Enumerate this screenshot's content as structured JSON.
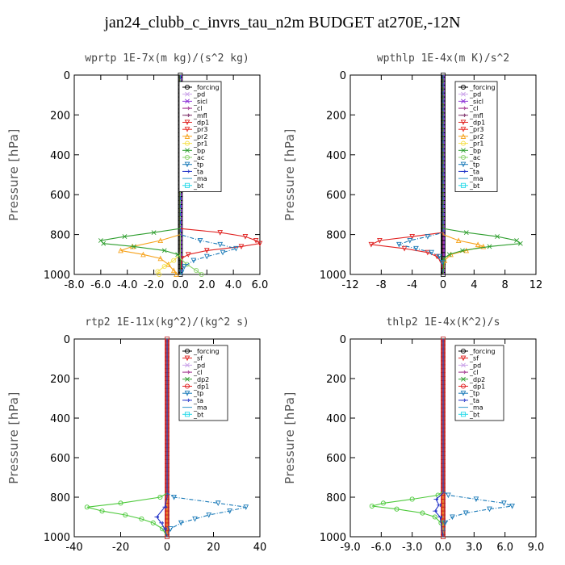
{
  "figure_title": "jan24_clubb_c_invrs_tau_n2m  BUDGET at270E,-12N",
  "chart_data": [
    {
      "type": "line",
      "title": "wprtp  1E-7x(m kg)/(s^2 kg)",
      "ylabel": "Pressure [hPa]",
      "xlim": [
        -8,
        6
      ],
      "ylim": [
        1000,
        0
      ],
      "xticks": [
        "-8.0",
        "-6.0",
        "-4.0",
        "-2.0",
        "0.0",
        "2.0",
        "4.0",
        "6.0"
      ],
      "xtick_values": [
        -8,
        -6,
        -4,
        -2,
        0,
        2,
        4,
        6
      ],
      "yticks": [
        "0",
        "200",
        "400",
        "600",
        "800",
        "1000"
      ],
      "ytick_values": [
        0,
        200,
        400,
        600,
        800,
        1000
      ],
      "legend": [
        "_forcing",
        "_pd",
        "_sicl",
        "_cl",
        "_mfl",
        "_dp1",
        "_pr3",
        "_pr2",
        "_pr1",
        "_bp",
        "_ac",
        "_tp",
        "_ta",
        "_ma",
        "_bt"
      ],
      "series": [
        {
          "name": "_dp1",
          "color": "#e0201f",
          "marker": "triangle-down",
          "p": [
            0,
            770,
            790,
            810,
            830,
            845,
            860,
            880,
            900,
            920,
            1000
          ],
          "v": [
            0,
            0,
            3.0,
            4.9,
            5.7,
            6.0,
            4.6,
            2.0,
            0.6,
            0.1,
            0
          ]
        },
        {
          "name": "_pr2",
          "color": "#f6a21b",
          "marker": "triangle",
          "p": [
            0,
            800,
            830,
            860,
            880,
            900,
            920,
            950,
            980,
            1000
          ],
          "v": [
            0,
            0,
            -1.5,
            -3.6,
            -4.5,
            -2.8,
            -1.5,
            -0.9,
            -0.5,
            -0.3
          ]
        },
        {
          "name": "_pr1",
          "color": "#f5e04a",
          "marker": "circle",
          "p": [
            0,
            900,
            930,
            960,
            985,
            1000
          ],
          "v": [
            0,
            0,
            -0.5,
            -1.2,
            -1.7,
            -1.6
          ]
        },
        {
          "name": "_bp",
          "color": "#2e9e2e",
          "marker": "x",
          "p": [
            0,
            770,
            790,
            810,
            830,
            845,
            860,
            880,
            900,
            920,
            1000
          ],
          "v": [
            0,
            0,
            -2.0,
            -4.2,
            -6.0,
            -5.8,
            -3.5,
            -1.2,
            -0.2,
            0,
            0
          ]
        },
        {
          "name": "_ac",
          "color": "#8ad26b",
          "marker": "circle",
          "p": [
            0,
            920,
            950,
            980,
            1000
          ],
          "v": [
            0,
            0,
            0.5,
            1.2,
            1.6
          ]
        },
        {
          "name": "_tp",
          "color": "#1a7ab8",
          "marker": "triangle-down",
          "p": [
            0,
            800,
            830,
            850,
            870,
            890,
            910,
            930,
            960,
            990,
            1000
          ],
          "v": [
            0,
            0,
            1.5,
            3.0,
            4.2,
            3.2,
            2.0,
            1.0,
            0.3,
            0.1,
            0
          ]
        }
      ]
    },
    {
      "type": "line",
      "title": "wpthlp  1E-4x(m K)/s^2",
      "ylabel": "Pressure [hPa]",
      "xlim": [
        -12,
        12
      ],
      "ylim": [
        1000,
        0
      ],
      "xticks": [
        "-12",
        "-8",
        "-4",
        "0",
        "4",
        "8",
        "12"
      ],
      "xtick_values": [
        -12,
        -8,
        -4,
        0,
        4,
        8,
        12
      ],
      "yticks": [
        "0",
        "200",
        "400",
        "600",
        "800",
        "1000"
      ],
      "ytick_values": [
        0,
        200,
        400,
        600,
        800,
        1000
      ],
      "legend": [
        "_forcing",
        "_pd",
        "_sicl",
        "_cl",
        "_mfl",
        "_dp1",
        "_pr3",
        "_pr2",
        "_pr1",
        "_bp",
        "_ac",
        "_tp",
        "_ta",
        "_ma",
        "_bt"
      ],
      "series": [
        {
          "name": "_dp1",
          "color": "#e0201f",
          "marker": "triangle-down",
          "p": [
            0,
            790,
            810,
            830,
            850,
            870,
            890,
            910,
            940,
            1000
          ],
          "v": [
            0,
            0,
            -4.0,
            -8.2,
            -9.3,
            -5.0,
            -2.0,
            -0.8,
            -0.2,
            0
          ]
        },
        {
          "name": "_pr2",
          "color": "#f6a21b",
          "marker": "triangle",
          "p": [
            0,
            800,
            830,
            850,
            860,
            880,
            900,
            930,
            1000
          ],
          "v": [
            0,
            0,
            2.0,
            4.5,
            5.2,
            3.0,
            1.0,
            0.2,
            0
          ]
        },
        {
          "name": "_bp",
          "color": "#2e9e2e",
          "marker": "x",
          "p": [
            0,
            770,
            790,
            810,
            830,
            845,
            860,
            880,
            900,
            920,
            1000
          ],
          "v": [
            0,
            0,
            3.0,
            7.0,
            9.5,
            10.0,
            6.0,
            2.5,
            0.8,
            0.1,
            0
          ]
        },
        {
          "name": "_tp",
          "color": "#1a7ab8",
          "marker": "triangle-down",
          "p": [
            0,
            790,
            810,
            830,
            850,
            870,
            890,
            910,
            940,
            1000
          ],
          "v": [
            0,
            0,
            -2.0,
            -4.3,
            -5.7,
            -3.5,
            -1.5,
            -0.5,
            -0.1,
            0
          ]
        }
      ]
    },
    {
      "type": "line",
      "title": "rtp2  1E-11x(kg^2)/(kg^2 s)",
      "ylabel": "Pressure [hPa]",
      "xlim": [
        -40,
        40
      ],
      "ylim": [
        1000,
        0
      ],
      "xticks": [
        "-40",
        "-20",
        "0",
        "20",
        "40"
      ],
      "xtick_values": [
        -40,
        -20,
        0,
        20,
        40
      ],
      "yticks": [
        "0",
        "200",
        "400",
        "600",
        "800",
        "1000"
      ],
      "ytick_values": [
        0,
        200,
        400,
        600,
        800,
        1000
      ],
      "legend": [
        "_forcing",
        "_sf",
        "_pd",
        "_cl",
        "_dp2",
        "_dp1",
        "_tp",
        "_ta",
        "_ma",
        "_bt"
      ],
      "series": [
        {
          "name": "_dp1",
          "color": "#4cc93a",
          "marker": "circle",
          "p": [
            0,
            780,
            800,
            830,
            850,
            870,
            890,
            910,
            930,
            960,
            1000
          ],
          "v": [
            0,
            0,
            -3.0,
            -20.0,
            -34.5,
            -28.0,
            -18.0,
            -11.0,
            -6.0,
            -2.0,
            0
          ]
        },
        {
          "name": "_tp",
          "color": "#1a7ab8",
          "marker": "triangle-down",
          "p": [
            0,
            780,
            800,
            830,
            850,
            870,
            890,
            910,
            930,
            960,
            1000
          ],
          "v": [
            0,
            0,
            3.0,
            22.0,
            34.0,
            27.0,
            18.0,
            12.0,
            6.0,
            1.5,
            0
          ]
        },
        {
          "name": "_ta",
          "color": "#2233c8",
          "marker": "arrow",
          "p": [
            0,
            800,
            850,
            900,
            930,
            960,
            1000
          ],
          "v": [
            0,
            0,
            -1.0,
            -4.5,
            -2.5,
            -1.0,
            0
          ]
        }
      ]
    },
    {
      "type": "line",
      "title": "thlp2  1E-4x(K^2)/s",
      "ylabel": "Pressure [hPa]",
      "xlim": [
        -9,
        9
      ],
      "ylim": [
        1000,
        0
      ],
      "xticks": [
        "-9.0",
        "-6.0",
        "-3.0",
        "0.0",
        "3.0",
        "6.0",
        "9.0"
      ],
      "xtick_values": [
        -9,
        -6,
        -3,
        0,
        3,
        6,
        9
      ],
      "yticks": [
        "0",
        "200",
        "400",
        "600",
        "800",
        "1000"
      ],
      "ytick_values": [
        0,
        200,
        400,
        600,
        800,
        1000
      ],
      "legend": [
        "_forcing",
        "_sf",
        "_pd",
        "_cl",
        "_dp2",
        "_dp1",
        "_tp",
        "_ta",
        "_ma",
        "_bt"
      ],
      "series": [
        {
          "name": "_dp1",
          "color": "#4cc93a",
          "marker": "circle",
          "p": [
            0,
            770,
            790,
            810,
            830,
            845,
            860,
            880,
            900,
            930,
            1000
          ],
          "v": [
            0,
            0,
            -0.5,
            -3.0,
            -5.8,
            -6.9,
            -4.5,
            -2.0,
            -0.8,
            -0.2,
            0
          ]
        },
        {
          "name": "_tp",
          "color": "#1a7ab8",
          "marker": "triangle-down",
          "p": [
            0,
            770,
            790,
            810,
            830,
            845,
            860,
            880,
            900,
            930,
            1000
          ],
          "v": [
            0,
            0,
            0.5,
            3.2,
            5.9,
            6.7,
            4.5,
            2.2,
            0.9,
            0.2,
            0
          ]
        },
        {
          "name": "_ta",
          "color": "#2233c8",
          "marker": "arrow",
          "p": [
            0,
            780,
            810,
            840,
            870,
            900,
            1000
          ],
          "v": [
            0,
            0,
            -0.7,
            -0.4,
            -0.8,
            -0.3,
            0
          ]
        }
      ]
    }
  ],
  "legend_colors": {
    "_forcing": "#000000",
    "_pd": "#c9a0e8",
    "_sicl": "#8b2fd6",
    "_cl": "#a0308c",
    "_mfl": "#7a2a66",
    "_dp1": "#e0201f",
    "_pr3": "#e8302a",
    "_pr2": "#f6a21b",
    "_pr1": "#f5e04a",
    "_bp": "#2e9e2e",
    "_ac": "#8ad26b",
    "_tp": "#1a7ab8",
    "_ta": "#2233c8",
    "_ma": "#3399cc",
    "_bt": "#22d8e8",
    "_sf": "#e0201f",
    "_dp2": "#2e9e2e"
  }
}
